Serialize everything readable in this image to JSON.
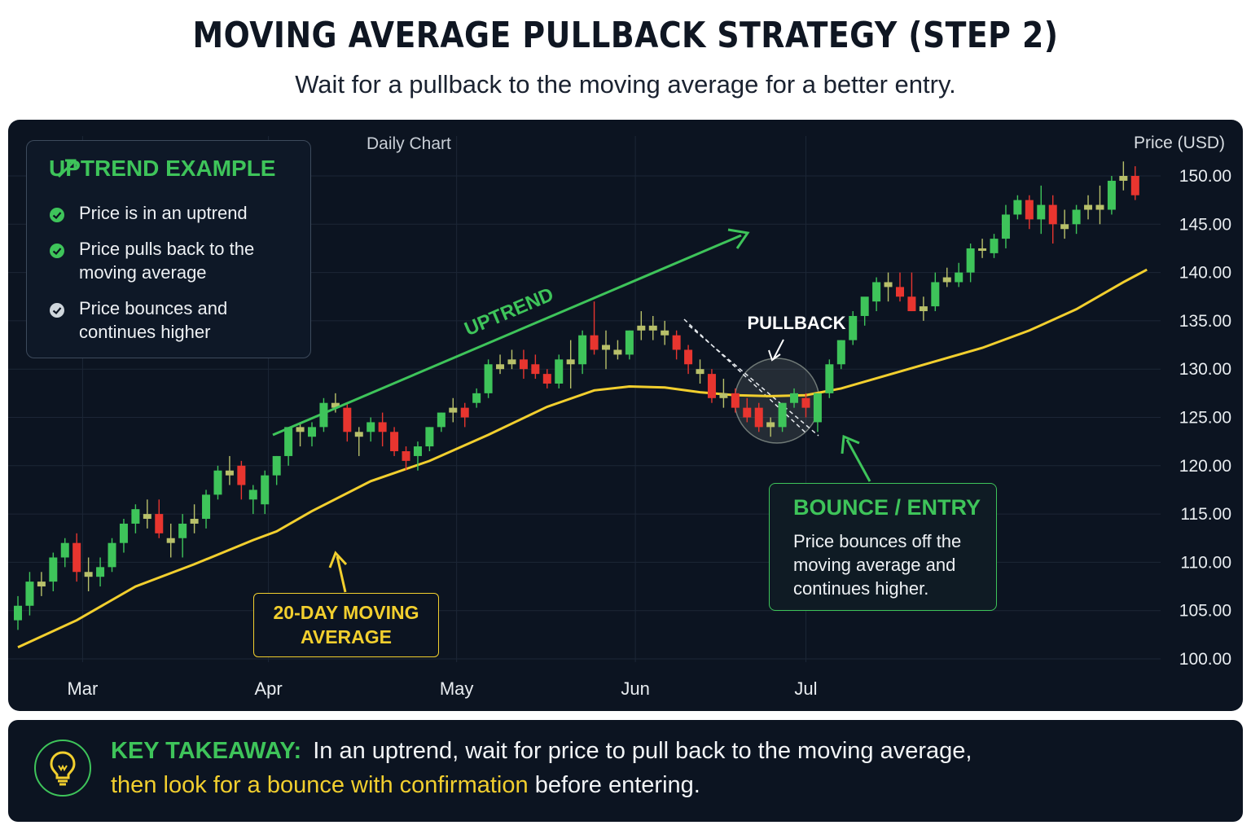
{
  "title": "MOVING AVERAGE PULLBACK STRATEGY (STEP 2)",
  "subtitle": "Wait for a pullback to the moving average for a better entry.",
  "chart_data": {
    "type": "candlestick",
    "chart_label": "Daily Chart",
    "y_axis_label": "Price (USD)",
    "ylim": [
      100,
      150
    ],
    "y_ticks": [
      "150.00",
      "145.00",
      "140.00",
      "135.00",
      "130.00",
      "125.00",
      "120.00",
      "115.00",
      "110.00",
      "105.00",
      "100.00"
    ],
    "y_tick_values": [
      150,
      145,
      140,
      135,
      130,
      125,
      120,
      115,
      110,
      105,
      100
    ],
    "x_ticks": [
      "Mar",
      "Apr",
      "May",
      "Jun",
      "Jul"
    ],
    "x_tick_index": [
      5.5,
      21.3,
      37.3,
      52.5,
      67.0
    ],
    "candles": [
      [
        104,
        106.5,
        103,
        105.5
      ],
      [
        105.5,
        109,
        104.5,
        108
      ],
      [
        107.5,
        109,
        106.5,
        108
      ],
      [
        108,
        111,
        107,
        110.5
      ],
      [
        110.5,
        112.5,
        109.5,
        112
      ],
      [
        112,
        113,
        108,
        109
      ],
      [
        109,
        110.5,
        107,
        108.5
      ],
      [
        108.5,
        110.5,
        107.5,
        109.5
      ],
      [
        109.5,
        112.5,
        109,
        112
      ],
      [
        112,
        114.5,
        111,
        114
      ],
      [
        114,
        116,
        113,
        115.5
      ],
      [
        115,
        116.5,
        113.5,
        114.5
      ],
      [
        115,
        116.5,
        112.5,
        113
      ],
      [
        112,
        114,
        110.5,
        112.5
      ],
      [
        112.5,
        115,
        110.5,
        114
      ],
      [
        114,
        116,
        113,
        114.5
      ],
      [
        114.5,
        117.5,
        113.5,
        117
      ],
      [
        117,
        120,
        116.5,
        119.5
      ],
      [
        119,
        121,
        118,
        119.5
      ],
      [
        120,
        120.5,
        116.5,
        118
      ],
      [
        116.5,
        118,
        115,
        117.5
      ],
      [
        116,
        119.5,
        115,
        119
      ],
      [
        119,
        121,
        118,
        121
      ],
      [
        121,
        124,
        120,
        124
      ],
      [
        123.5,
        124.5,
        122,
        124
      ],
      [
        123,
        124.5,
        122,
        124
      ],
      [
        124,
        127,
        123.5,
        126.5
      ],
      [
        126.5,
        127.5,
        125.5,
        126
      ],
      [
        126,
        126.5,
        122.5,
        123.5
      ],
      [
        123.5,
        124,
        121,
        123
      ],
      [
        123.5,
        125,
        122.5,
        124.5
      ],
      [
        124.5,
        125.5,
        122,
        123.5
      ],
      [
        123.5,
        124,
        121,
        121.5
      ],
      [
        121.5,
        122,
        119.5,
        120.5
      ],
      [
        121,
        122.5,
        119.5,
        122
      ],
      [
        122,
        124,
        121.5,
        124
      ],
      [
        124,
        125.5,
        123.5,
        125.5
      ],
      [
        125.5,
        127,
        124.5,
        126
      ],
      [
        126,
        126.5,
        124,
        125
      ],
      [
        126.5,
        128,
        126,
        127.5
      ],
      [
        127.5,
        131,
        127,
        130.5
      ],
      [
        130.5,
        131.5,
        129.5,
        130
      ],
      [
        130.5,
        132,
        130,
        131
      ],
      [
        131,
        132,
        129,
        130
      ],
      [
        130.5,
        131.5,
        129,
        129.5
      ],
      [
        129.5,
        130,
        128,
        128.5
      ],
      [
        128.5,
        131.5,
        128,
        131
      ],
      [
        131,
        133,
        128,
        130.5
      ],
      [
        130.5,
        134,
        129.5,
        133.5
      ],
      [
        133.5,
        137,
        131.5,
        132
      ],
      [
        132,
        134,
        130,
        132.5
      ],
      [
        132,
        133,
        131,
        131.5
      ],
      [
        131.5,
        134,
        131,
        134
      ],
      [
        134,
        136,
        133,
        134.5
      ],
      [
        134.5,
        135.5,
        133,
        134
      ],
      [
        134,
        135,
        132.5,
        133.5
      ],
      [
        133.5,
        134,
        131,
        132
      ],
      [
        132,
        132.5,
        129.5,
        130.5
      ],
      [
        130,
        131,
        128.5,
        129.5
      ],
      [
        129.5,
        130,
        126.5,
        127
      ],
      [
        127,
        129,
        126,
        127.5
      ],
      [
        127.5,
        128,
        125.5,
        126
      ],
      [
        126,
        127,
        124.5,
        125
      ],
      [
        126,
        126.5,
        123.5,
        124
      ],
      [
        124.5,
        125,
        123,
        124
      ],
      [
        124,
        126.5,
        123.5,
        126.5
      ],
      [
        126.5,
        128,
        126,
        127.5
      ],
      [
        127,
        127.5,
        125,
        126
      ],
      [
        124.5,
        127.5,
        123.5,
        127.5
      ],
      [
        127.5,
        131,
        127,
        130.5
      ],
      [
        130.5,
        133,
        130,
        133
      ],
      [
        133,
        136,
        132.5,
        135.5
      ],
      [
        135.5,
        137,
        134.5,
        137.5
      ],
      [
        137,
        139.5,
        136,
        139
      ],
      [
        139,
        140,
        137,
        138.5
      ],
      [
        138.5,
        140,
        137,
        137.5
      ],
      [
        137.5,
        140,
        136,
        136
      ],
      [
        136,
        137.5,
        135,
        136.5
      ],
      [
        136.5,
        140,
        136,
        139
      ],
      [
        139,
        140.5,
        138.5,
        139.5
      ],
      [
        139,
        141,
        138.5,
        140
      ],
      [
        140,
        143,
        139,
        142.5
      ],
      [
        142.5,
        143.5,
        141.5,
        142.5
      ],
      [
        142,
        144,
        141.5,
        143.5
      ],
      [
        143.5,
        147,
        142.5,
        146
      ],
      [
        146,
        148,
        145.5,
        147.5
      ],
      [
        147.5,
        148,
        144.5,
        145.5
      ],
      [
        145.5,
        149,
        144,
        147
      ],
      [
        147,
        148,
        143,
        145
      ],
      [
        145,
        146.5,
        143.5,
        144.5
      ],
      [
        145,
        147,
        144,
        146.5
      ],
      [
        146.5,
        148,
        145.5,
        147
      ],
      [
        147,
        149,
        145,
        146.5
      ],
      [
        146.5,
        150,
        146,
        149.5
      ],
      [
        149.5,
        151.5,
        148.5,
        150
      ],
      [
        150,
        151,
        147.5,
        148
      ]
    ],
    "ma_label": "20-DAY MOVING AVERAGE",
    "moving_average": [
      [
        0,
        101.2
      ],
      [
        5,
        104
      ],
      [
        10,
        107.5
      ],
      [
        15,
        109.8
      ],
      [
        20,
        112.3
      ],
      [
        22,
        113.2
      ],
      [
        25,
        115.3
      ],
      [
        30,
        118.4
      ],
      [
        35,
        120.5
      ],
      [
        40,
        123.2
      ],
      [
        45,
        126.1
      ],
      [
        49,
        127.8
      ],
      [
        52,
        128.2
      ],
      [
        55,
        128.1
      ],
      [
        58,
        127.6
      ],
      [
        61,
        127.3
      ],
      [
        64,
        127.2
      ],
      [
        67,
        127.3
      ],
      [
        70,
        128
      ],
      [
        74,
        129.4
      ],
      [
        78,
        130.8
      ],
      [
        82,
        132.2
      ],
      [
        86,
        134
      ],
      [
        90,
        136.2
      ],
      [
        94,
        139
      ],
      [
        96,
        140.3
      ]
    ],
    "uptrend_label": "UPTREND",
    "pullback_label": "PULLBACK",
    "entry_title": "BOUNCE / ENTRY",
    "entry_text": "Price bounces off the moving average and continues higher.",
    "legend_box": {
      "title": "UPTREND EXAMPLE",
      "items": [
        "Price is in an uptrend",
        "Price pulls back to the moving average",
        "Price bounces and continues higher"
      ]
    },
    "colors": {
      "up": "#3ec45a",
      "down": "#e8352f",
      "doji": "#b8c06a",
      "ma": "#f2cf2e",
      "background": "#0c1421",
      "grid": "#1c2636"
    }
  },
  "takeaway": {
    "label": "KEY TAKEAWAY:",
    "line1": "In an uptrend, wait for price to pull back to the moving average,",
    "highlight": "then look for a bounce with confirmation",
    "line2_rest": " before entering.",
    "icon": "lightbulb-icon"
  }
}
